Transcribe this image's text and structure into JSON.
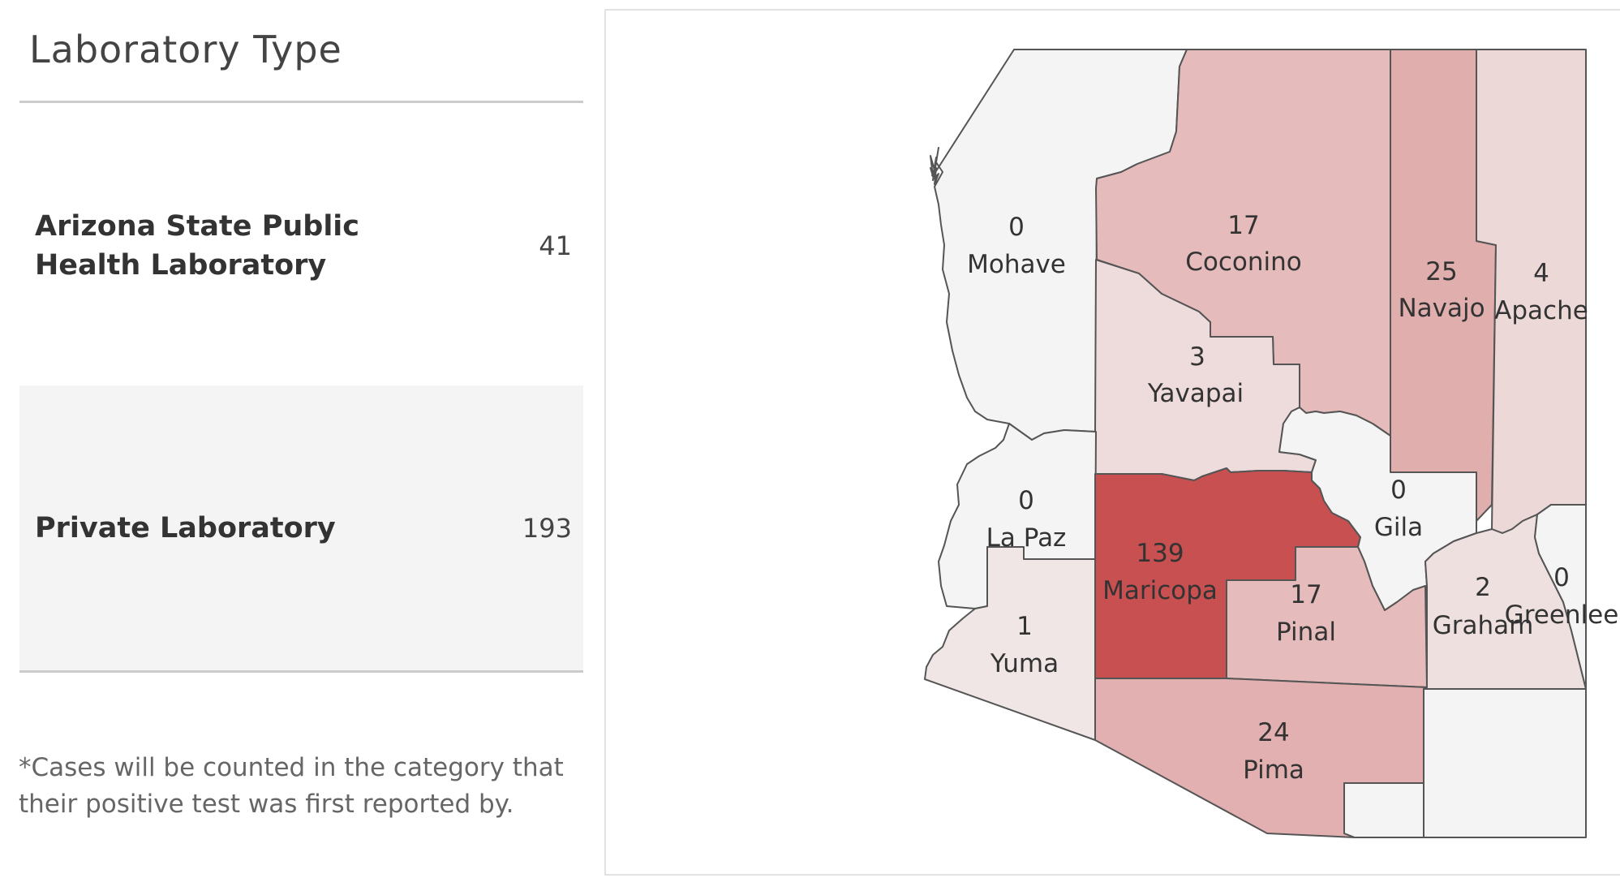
{
  "panel": {
    "title": "Laboratory Type",
    "rows": [
      {
        "label": "Arizona State Public Health Laboratory",
        "count": "41"
      },
      {
        "label": "Private Laboratory",
        "count": "193"
      }
    ],
    "footnote": "*Cases will be counted in the category that their positive test was first reported by."
  },
  "map": {
    "counties": [
      {
        "id": "mohave",
        "name": "Mohave",
        "value": 0
      },
      {
        "id": "coconino",
        "name": "Coconino",
        "value": 17
      },
      {
        "id": "navajo",
        "name": "Navajo",
        "value": 25
      },
      {
        "id": "apache",
        "name": "Apache",
        "value": 4
      },
      {
        "id": "yavapai",
        "name": "Yavapai",
        "value": 3
      },
      {
        "id": "lapaz",
        "name": "La Paz",
        "value": 0
      },
      {
        "id": "maricopa",
        "name": "Maricopa",
        "value": 139
      },
      {
        "id": "gila",
        "name": "Gila",
        "value": 0
      },
      {
        "id": "pinal",
        "name": "Pinal",
        "value": 17
      },
      {
        "id": "graham",
        "name": "Graham",
        "value": 2
      },
      {
        "id": "greenlee",
        "name": "Greenlee",
        "value": 0
      },
      {
        "id": "yuma",
        "name": "Yuma",
        "value": 1
      },
      {
        "id": "pima",
        "name": "Pima",
        "value": 24
      },
      {
        "id": "santacruz",
        "name": "",
        "value": null
      },
      {
        "id": "cochise",
        "name": "",
        "value": null
      }
    ],
    "color_scale": {
      "low": "#f4f4f4",
      "high": "#c85050",
      "max": 139
    }
  }
}
